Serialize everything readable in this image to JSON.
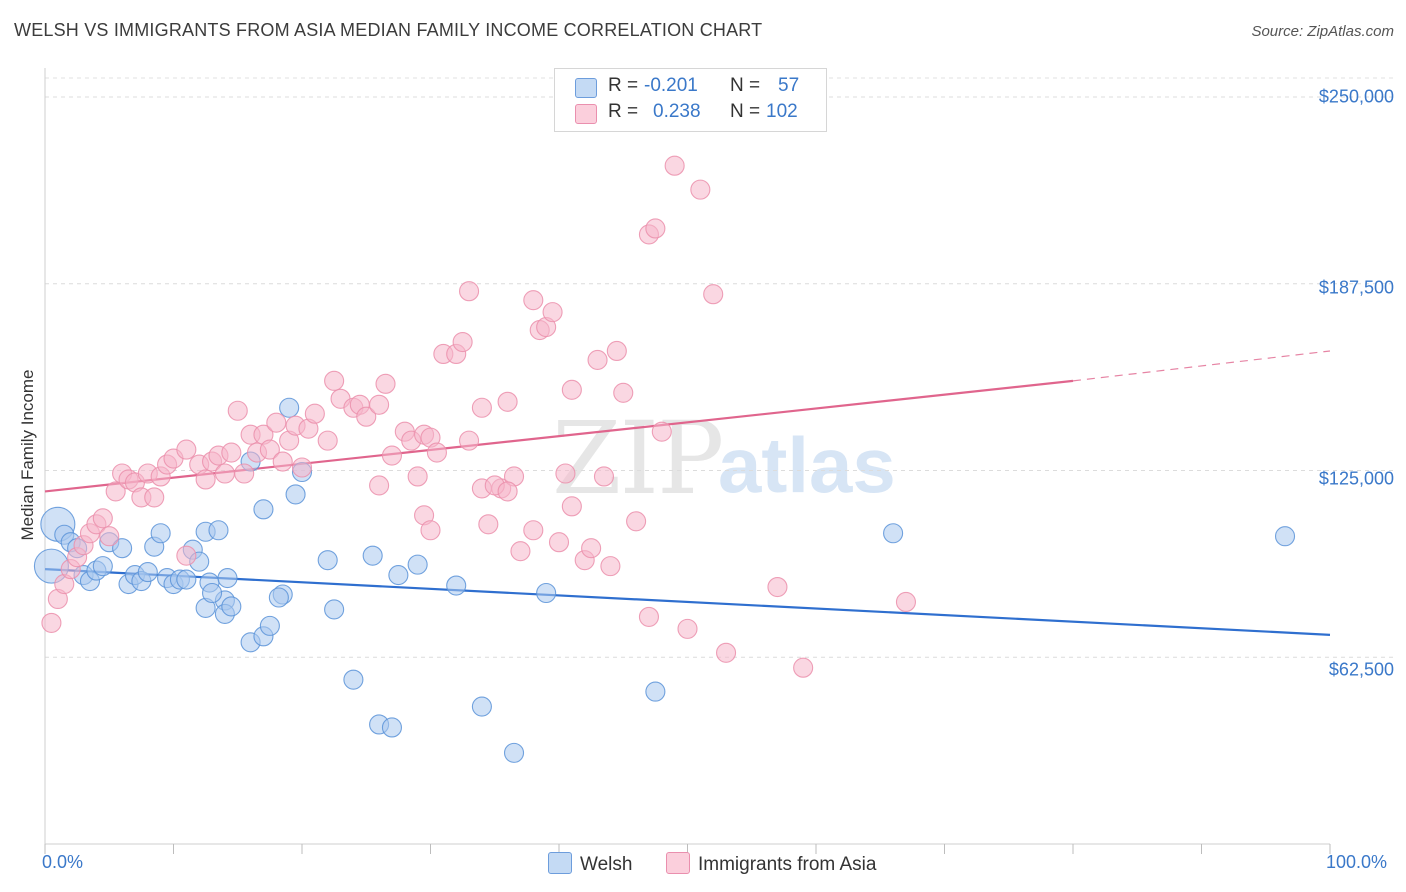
{
  "title": "WELSH VS IMMIGRANTS FROM ASIA MEDIAN FAMILY INCOME CORRELATION CHART",
  "source": "Source: ZipAtlas.com",
  "watermark": {
    "zip": "ZIP",
    "atlas": "atlas"
  },
  "legend": {
    "r_label": "R =",
    "n_label": "N =",
    "rows": [
      {
        "r": "-0.201",
        "n": "57",
        "color": "#a9c8ee"
      },
      {
        "r": "0.238",
        "n": "102",
        "color": "#f5b6ca"
      }
    ]
  },
  "bottom_legend": [
    "Welsh",
    "Immigrants from Asia"
  ],
  "chart_data": {
    "type": "scatter",
    "title": "WELSH VS IMMIGRANTS FROM ASIA MEDIAN FAMILY INCOME CORRELATION CHART",
    "xlabel": "",
    "ylabel": "Median Family Income",
    "xlim": [
      0,
      100
    ],
    "ylim": [
      0,
      260000
    ],
    "x_tick_labels": [
      "0.0%",
      "100.0%"
    ],
    "y_ticks": [
      62500,
      125000,
      187500,
      250000
    ],
    "y_tick_labels": [
      "$62,500",
      "$125,000",
      "$187,500",
      "$250,000"
    ],
    "grid": true,
    "series": [
      {
        "name": "Welsh",
        "color": "#5b93d8",
        "fill": "#a9c8ee",
        "line_color": "#2f6fcf",
        "trend": {
          "x0": 0,
          "y0": 92000,
          "x1": 100,
          "y1": 70000
        },
        "points": [
          [
            0.5,
            93000,
            1
          ],
          [
            1.0,
            107000,
            1
          ],
          [
            1.5,
            103500,
            0
          ],
          [
            2.0,
            101000,
            0
          ],
          [
            2.5,
            99000,
            0
          ],
          [
            3.0,
            90000,
            0
          ],
          [
            3.5,
            88000,
            0
          ],
          [
            4.0,
            91500,
            0
          ],
          [
            4.5,
            93000,
            0
          ],
          [
            5.0,
            101000,
            0
          ],
          [
            6.0,
            99000,
            0
          ],
          [
            6.5,
            87000,
            0
          ],
          [
            7.0,
            90000,
            0
          ],
          [
            7.5,
            88000,
            0
          ],
          [
            8.0,
            91000,
            0
          ],
          [
            8.5,
            99500,
            0
          ],
          [
            9.0,
            104000,
            0
          ],
          [
            9.5,
            89000,
            0
          ],
          [
            10.0,
            87000,
            0
          ],
          [
            10.5,
            88500,
            0
          ],
          [
            11.5,
            98500,
            0
          ],
          [
            12.0,
            94500,
            0
          ],
          [
            11.0,
            88500,
            0
          ],
          [
            12.5,
            79000,
            0
          ],
          [
            12.8,
            87500,
            0
          ],
          [
            14.0,
            81500,
            0
          ],
          [
            12.5,
            104500,
            0
          ],
          [
            13.5,
            105000,
            0
          ],
          [
            13.0,
            84000,
            0
          ],
          [
            14.0,
            77000,
            0
          ],
          [
            14.5,
            79500,
            0
          ],
          [
            14.2,
            89000,
            0
          ],
          [
            16.0,
            67500,
            0
          ],
          [
            17.0,
            69500,
            0
          ],
          [
            17.5,
            73000,
            0
          ],
          [
            18.5,
            83500,
            0
          ],
          [
            18.2,
            82500,
            0
          ],
          [
            19.5,
            117000,
            0
          ],
          [
            20.0,
            124500,
            0
          ],
          [
            22.0,
            95000,
            0
          ],
          [
            22.5,
            78500,
            0
          ],
          [
            24.0,
            55000,
            0
          ],
          [
            25.5,
            96500,
            0
          ],
          [
            26.0,
            40000,
            0
          ],
          [
            27.0,
            39000,
            0
          ],
          [
            27.5,
            90000,
            0
          ],
          [
            29.0,
            93500,
            0
          ],
          [
            32.0,
            86500,
            0
          ],
          [
            34.0,
            46000,
            0
          ],
          [
            36.5,
            30500,
            0
          ],
          [
            39.0,
            84000,
            0
          ],
          [
            47.5,
            51000,
            0
          ],
          [
            19.0,
            146000,
            0
          ],
          [
            16.0,
            128000,
            0
          ],
          [
            17.0,
            112000,
            0
          ],
          [
            66.0,
            104000,
            0
          ],
          [
            96.5,
            103000,
            0
          ]
        ]
      },
      {
        "name": "Immigrants from Asia",
        "color": "#eb8fac",
        "fill": "#f5b6ca",
        "line_color": "#e0658d",
        "trend": {
          "x0": 0,
          "y0": 118000,
          "x1": 80,
          "y1": 155000
        },
        "trend_dashed": {
          "x0": 80,
          "y0": 155000,
          "x1": 100,
          "y1": 165000
        },
        "points": [
          [
            0.5,
            74000,
            0
          ],
          [
            1.0,
            82000,
            0
          ],
          [
            1.5,
            87000,
            0
          ],
          [
            2.0,
            92000,
            0
          ],
          [
            2.5,
            96000,
            0
          ],
          [
            3.0,
            100000,
            0
          ],
          [
            3.5,
            104000,
            0
          ],
          [
            4.0,
            107000,
            0
          ],
          [
            4.5,
            109000,
            0
          ],
          [
            5.0,
            103000,
            0
          ],
          [
            5.5,
            118000,
            0
          ],
          [
            6.0,
            124000,
            0
          ],
          [
            6.5,
            122000,
            0
          ],
          [
            7.0,
            121000,
            0
          ],
          [
            7.5,
            116000,
            0
          ],
          [
            8.0,
            124000,
            0
          ],
          [
            8.5,
            116000,
            0
          ],
          [
            9.0,
            123000,
            0
          ],
          [
            9.5,
            127000,
            0
          ],
          [
            10.0,
            129000,
            0
          ],
          [
            11.0,
            96500,
            0
          ],
          [
            11.0,
            132000,
            0
          ],
          [
            12.0,
            127000,
            0
          ],
          [
            12.5,
            122000,
            0
          ],
          [
            13.0,
            128000,
            0
          ],
          [
            13.5,
            130000,
            0
          ],
          [
            14.0,
            124000,
            0
          ],
          [
            14.5,
            131000,
            0
          ],
          [
            15.0,
            145000,
            0
          ],
          [
            15.5,
            124000,
            0
          ],
          [
            16.0,
            137000,
            0
          ],
          [
            16.5,
            131000,
            0
          ],
          [
            17.0,
            137000,
            0
          ],
          [
            17.5,
            132000,
            0
          ],
          [
            18.0,
            141000,
            0
          ],
          [
            18.5,
            128000,
            0
          ],
          [
            19.0,
            135000,
            0
          ],
          [
            19.5,
            140000,
            0
          ],
          [
            20.0,
            126000,
            0
          ],
          [
            20.5,
            139000,
            0
          ],
          [
            21.0,
            144000,
            0
          ],
          [
            22.0,
            135000,
            0
          ],
          [
            22.5,
            155000,
            0
          ],
          [
            23.0,
            149000,
            0
          ],
          [
            24.0,
            146000,
            0
          ],
          [
            24.5,
            147000,
            0
          ],
          [
            25.0,
            143000,
            0
          ],
          [
            26.0,
            147000,
            0
          ],
          [
            26.5,
            154000,
            0
          ],
          [
            27.0,
            130000,
            0
          ],
          [
            28.0,
            138000,
            0
          ],
          [
            28.5,
            135000,
            0
          ],
          [
            29.0,
            123000,
            0
          ],
          [
            29.5,
            137000,
            0
          ],
          [
            30.0,
            136000,
            0
          ],
          [
            30.5,
            131000,
            0
          ],
          [
            31.0,
            164000,
            0
          ],
          [
            32.0,
            164000,
            0
          ],
          [
            32.5,
            168000,
            0
          ],
          [
            33.0,
            135000,
            0
          ],
          [
            34.0,
            119000,
            0
          ],
          [
            34.5,
            107000,
            0
          ],
          [
            35.5,
            119000,
            0
          ],
          [
            36.0,
            148000,
            0
          ],
          [
            36.5,
            123000,
            0
          ],
          [
            37.0,
            98000,
            0
          ],
          [
            38.0,
            182000,
            0
          ],
          [
            38.5,
            172000,
            0
          ],
          [
            39.0,
            173000,
            0
          ],
          [
            39.5,
            178000,
            0
          ],
          [
            40.0,
            101000,
            0
          ],
          [
            40.5,
            124000,
            0
          ],
          [
            41.0,
            152000,
            0
          ],
          [
            42.0,
            95000,
            0
          ],
          [
            42.5,
            99000,
            0
          ],
          [
            43.0,
            162000,
            0
          ],
          [
            43.5,
            123000,
            0
          ],
          [
            44.0,
            93000,
            0
          ],
          [
            44.5,
            165000,
            0
          ],
          [
            45.0,
            151000,
            0
          ],
          [
            46.0,
            108000,
            0
          ],
          [
            47.0,
            204000,
            0
          ],
          [
            47.5,
            206000,
            0
          ],
          [
            48.0,
            138000,
            0
          ],
          [
            49.0,
            227000,
            0
          ],
          [
            50.0,
            72000,
            0
          ],
          [
            51.0,
            219000,
            0
          ],
          [
            52.0,
            184000,
            0
          ],
          [
            53.0,
            64000,
            0
          ],
          [
            57.0,
            86000,
            0
          ],
          [
            59.0,
            59000,
            0
          ],
          [
            67.0,
            81000,
            0
          ],
          [
            34.0,
            146000,
            0
          ],
          [
            29.5,
            110000,
            0
          ],
          [
            33.0,
            185000,
            0
          ],
          [
            35.0,
            120000,
            0
          ],
          [
            26.0,
            120000,
            0
          ],
          [
            30.0,
            105000,
            0
          ],
          [
            36.0,
            118000,
            0
          ],
          [
            38.0,
            105000,
            0
          ],
          [
            41.0,
            113000,
            0
          ],
          [
            47.0,
            76000,
            0
          ]
        ]
      }
    ]
  }
}
